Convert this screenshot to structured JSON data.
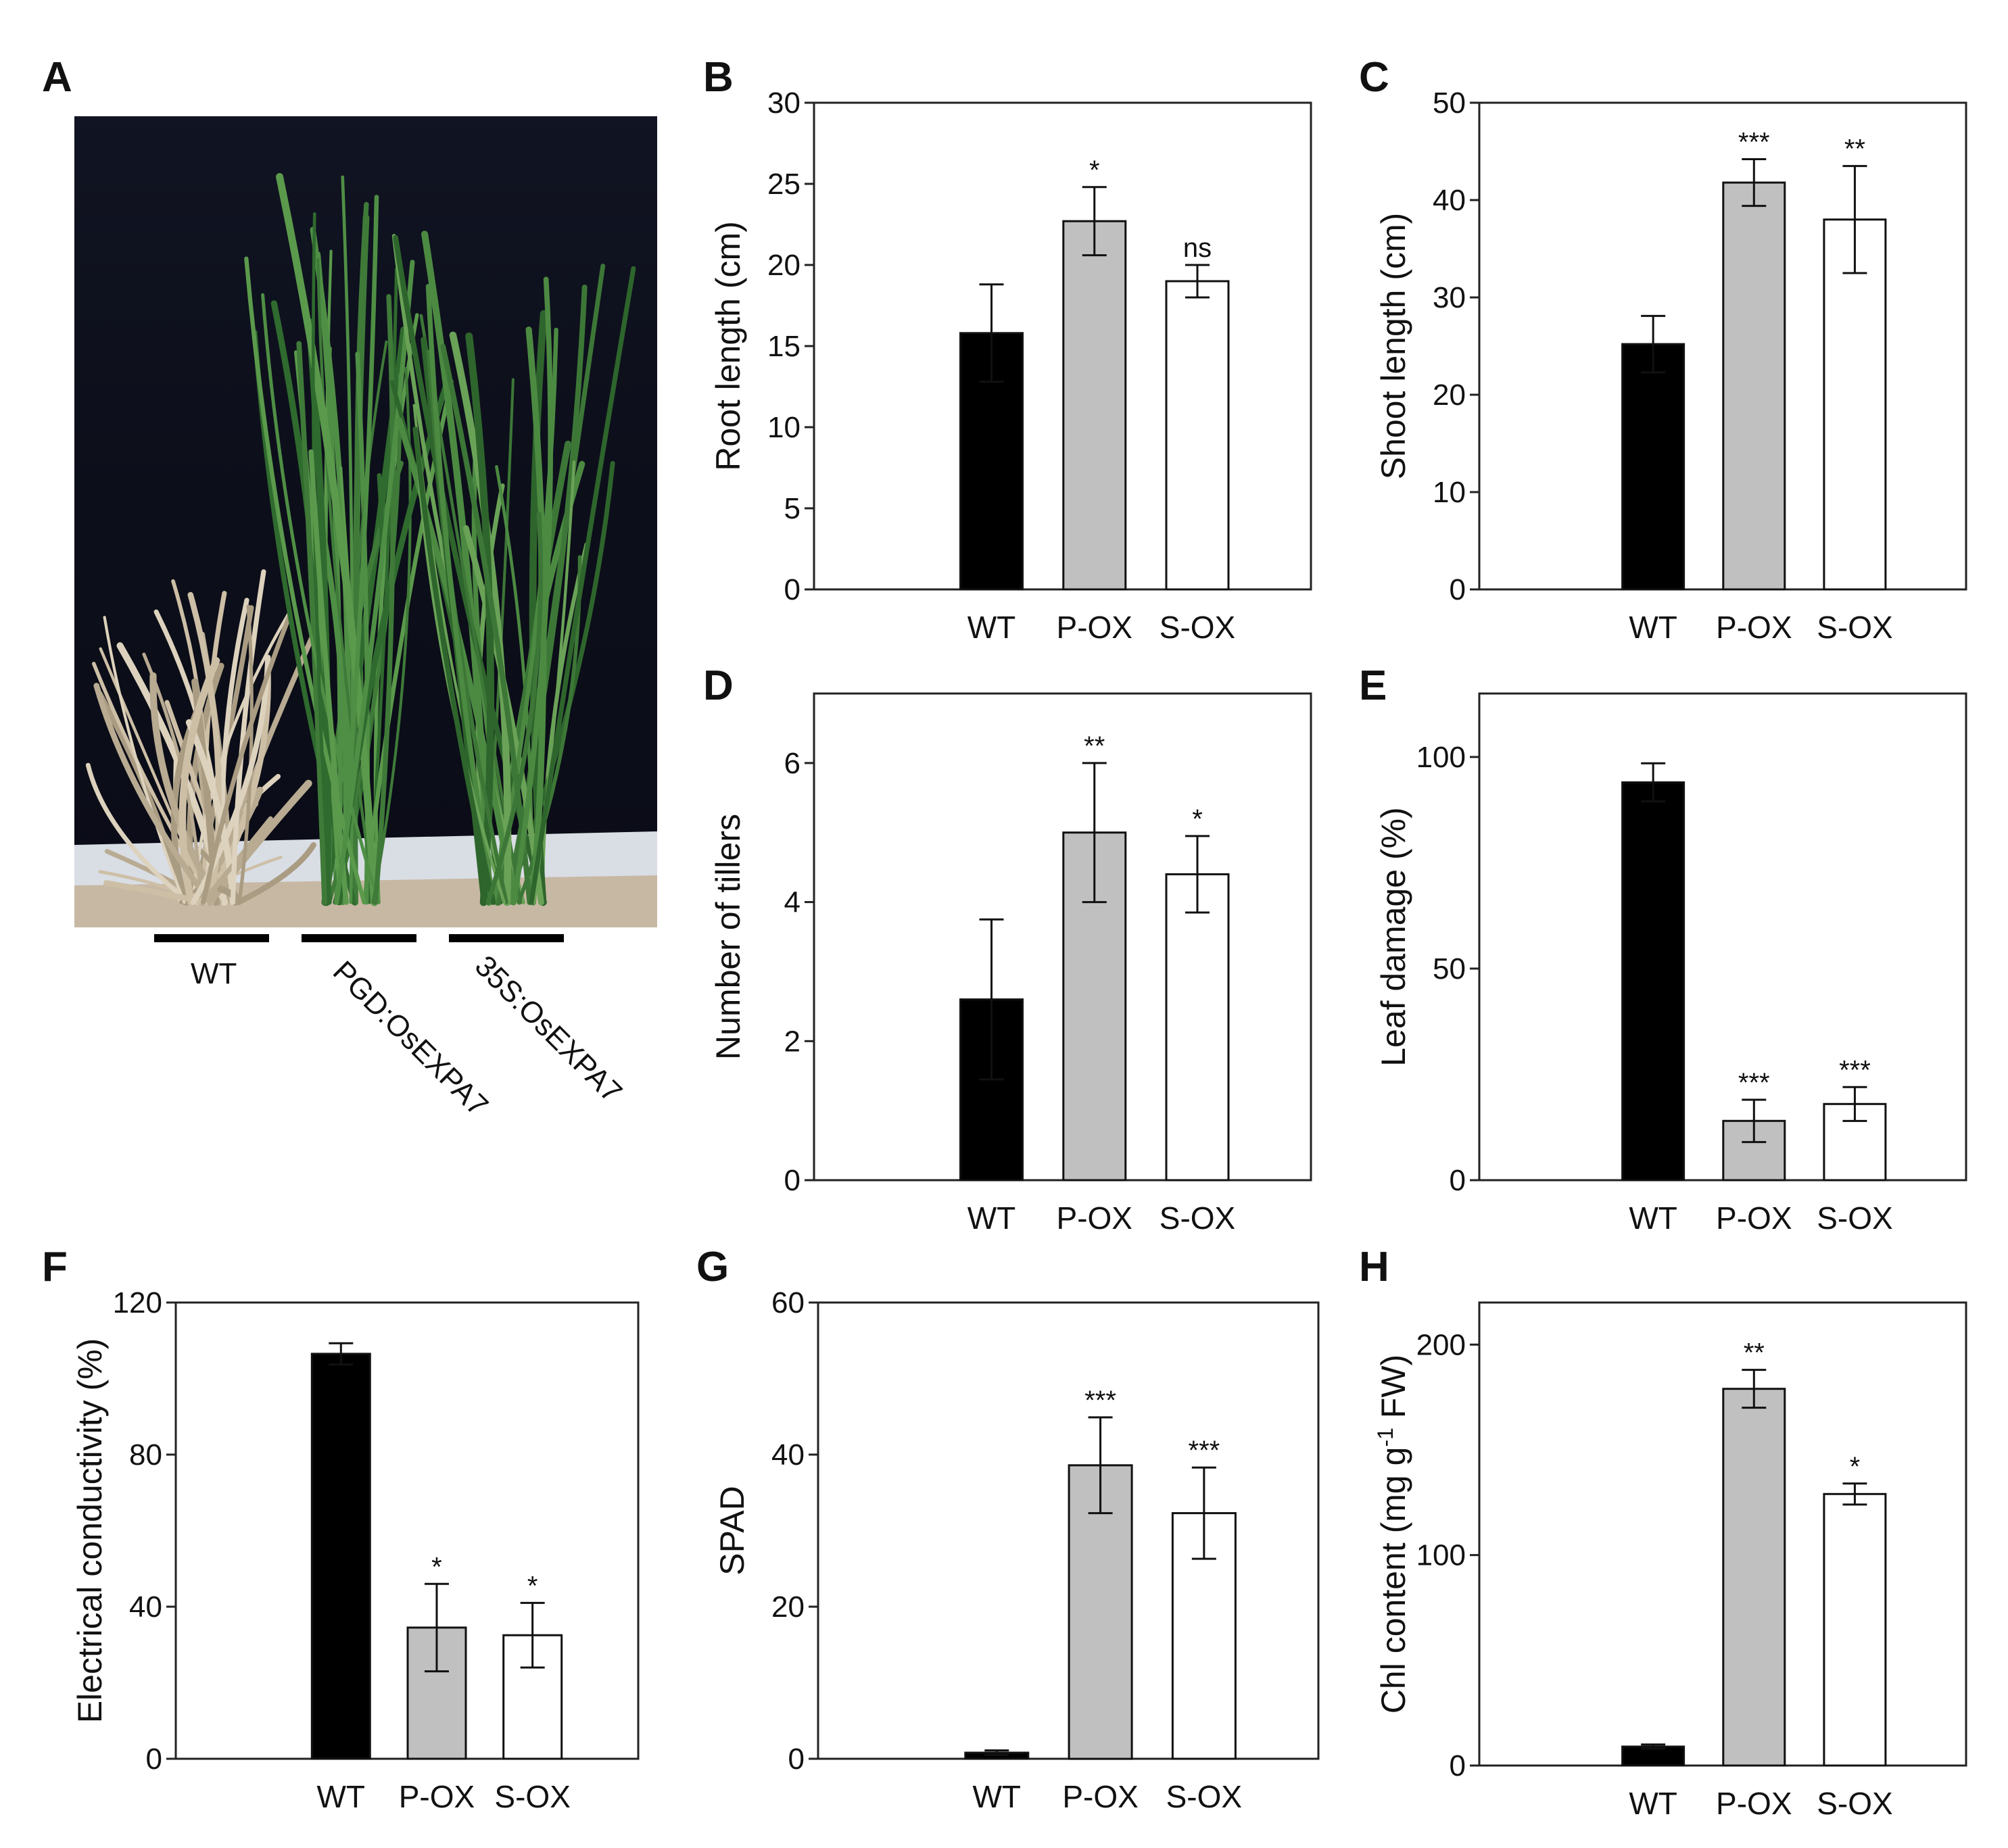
{
  "figure": {
    "panelA": {
      "letter": "A",
      "labels": [
        "WT",
        "PGD:OsEXPA7",
        "35S:OsEXPA7"
      ]
    }
  },
  "colors": {
    "wt": "#000000",
    "pox": "#c0c0c0",
    "sox": "#ffffff",
    "axis": "#222222",
    "photo_bg": "#0c0e1a"
  },
  "chart_data": [
    {
      "letter": "B",
      "type": "bar",
      "categories": [
        "WT",
        "P-OX",
        "S-OX"
      ],
      "values": [
        15.8,
        22.7,
        19.0
      ],
      "errors": [
        3.0,
        2.1,
        1.0
      ],
      "sig": [
        "",
        "*",
        "ns"
      ],
      "ylabel": "Root length (cm)",
      "ylim": [
        0,
        30
      ],
      "yticks": [
        0,
        5,
        10,
        15,
        20,
        25,
        30
      ]
    },
    {
      "letter": "C",
      "type": "bar",
      "categories": [
        "WT",
        "P-OX",
        "S-OX"
      ],
      "values": [
        25.2,
        41.8,
        38.0
      ],
      "errors": [
        2.9,
        2.4,
        5.5
      ],
      "sig": [
        "",
        "***",
        "**"
      ],
      "ylabel": "Shoot length (cm)",
      "ylim": [
        0,
        50
      ],
      "yticks": [
        0,
        10,
        20,
        30,
        40,
        50
      ]
    },
    {
      "letter": "D",
      "type": "bar",
      "categories": [
        "WT",
        "P-OX",
        "S-OX"
      ],
      "values": [
        2.6,
        5.0,
        4.4
      ],
      "errors": [
        1.15,
        1.0,
        0.55
      ],
      "sig": [
        "",
        "**",
        "*"
      ],
      "ylabel": "Number of tillers",
      "ylim": [
        0,
        7
      ],
      "yticks": [
        0,
        2,
        4,
        6
      ]
    },
    {
      "letter": "E",
      "type": "bar",
      "categories": [
        "WT",
        "P-OX",
        "S-OX"
      ],
      "values": [
        94,
        14,
        18
      ],
      "errors": [
        4.5,
        5,
        4
      ],
      "sig": [
        "",
        "***",
        "***"
      ],
      "ylabel": "Leaf damage (%)",
      "ylim": [
        0,
        115
      ],
      "yticks": [
        0,
        50,
        100
      ]
    },
    {
      "letter": "F",
      "type": "bar",
      "categories": [
        "WT",
        "P-OX",
        "S-OX"
      ],
      "values": [
        106.5,
        34.5,
        32.5
      ],
      "errors": [
        2.8,
        11.5,
        8.5
      ],
      "sig": [
        "",
        "*",
        "*"
      ],
      "ylabel": "Electrical conductivity (%)",
      "ylim": [
        0,
        120
      ],
      "yticks": [
        0,
        40,
        80,
        120
      ]
    },
    {
      "letter": "G",
      "type": "bar",
      "categories": [
        "WT",
        "P-OX",
        "S-OX"
      ],
      "values": [
        0.8,
        38.6,
        32.3
      ],
      "errors": [
        0.3,
        6.3,
        6.0
      ],
      "sig": [
        "",
        "***",
        "***"
      ],
      "ylabel": "SPAD",
      "ylim": [
        0,
        60
      ],
      "yticks": [
        0,
        20,
        40,
        60
      ]
    },
    {
      "letter": "H",
      "type": "bar",
      "categories": [
        "WT",
        "P-OX",
        "S-OX"
      ],
      "values": [
        9,
        179,
        129
      ],
      "errors": [
        1,
        9,
        5
      ],
      "sig": [
        "",
        "**",
        "*"
      ],
      "ylabel": "Chl content (mg g-1 FW)",
      "ylabel_parts": [
        "Chl  content (mg g",
        "-1",
        " FW)"
      ],
      "ylim": [
        0,
        220
      ],
      "yticks": [
        0,
        100,
        200
      ]
    }
  ]
}
